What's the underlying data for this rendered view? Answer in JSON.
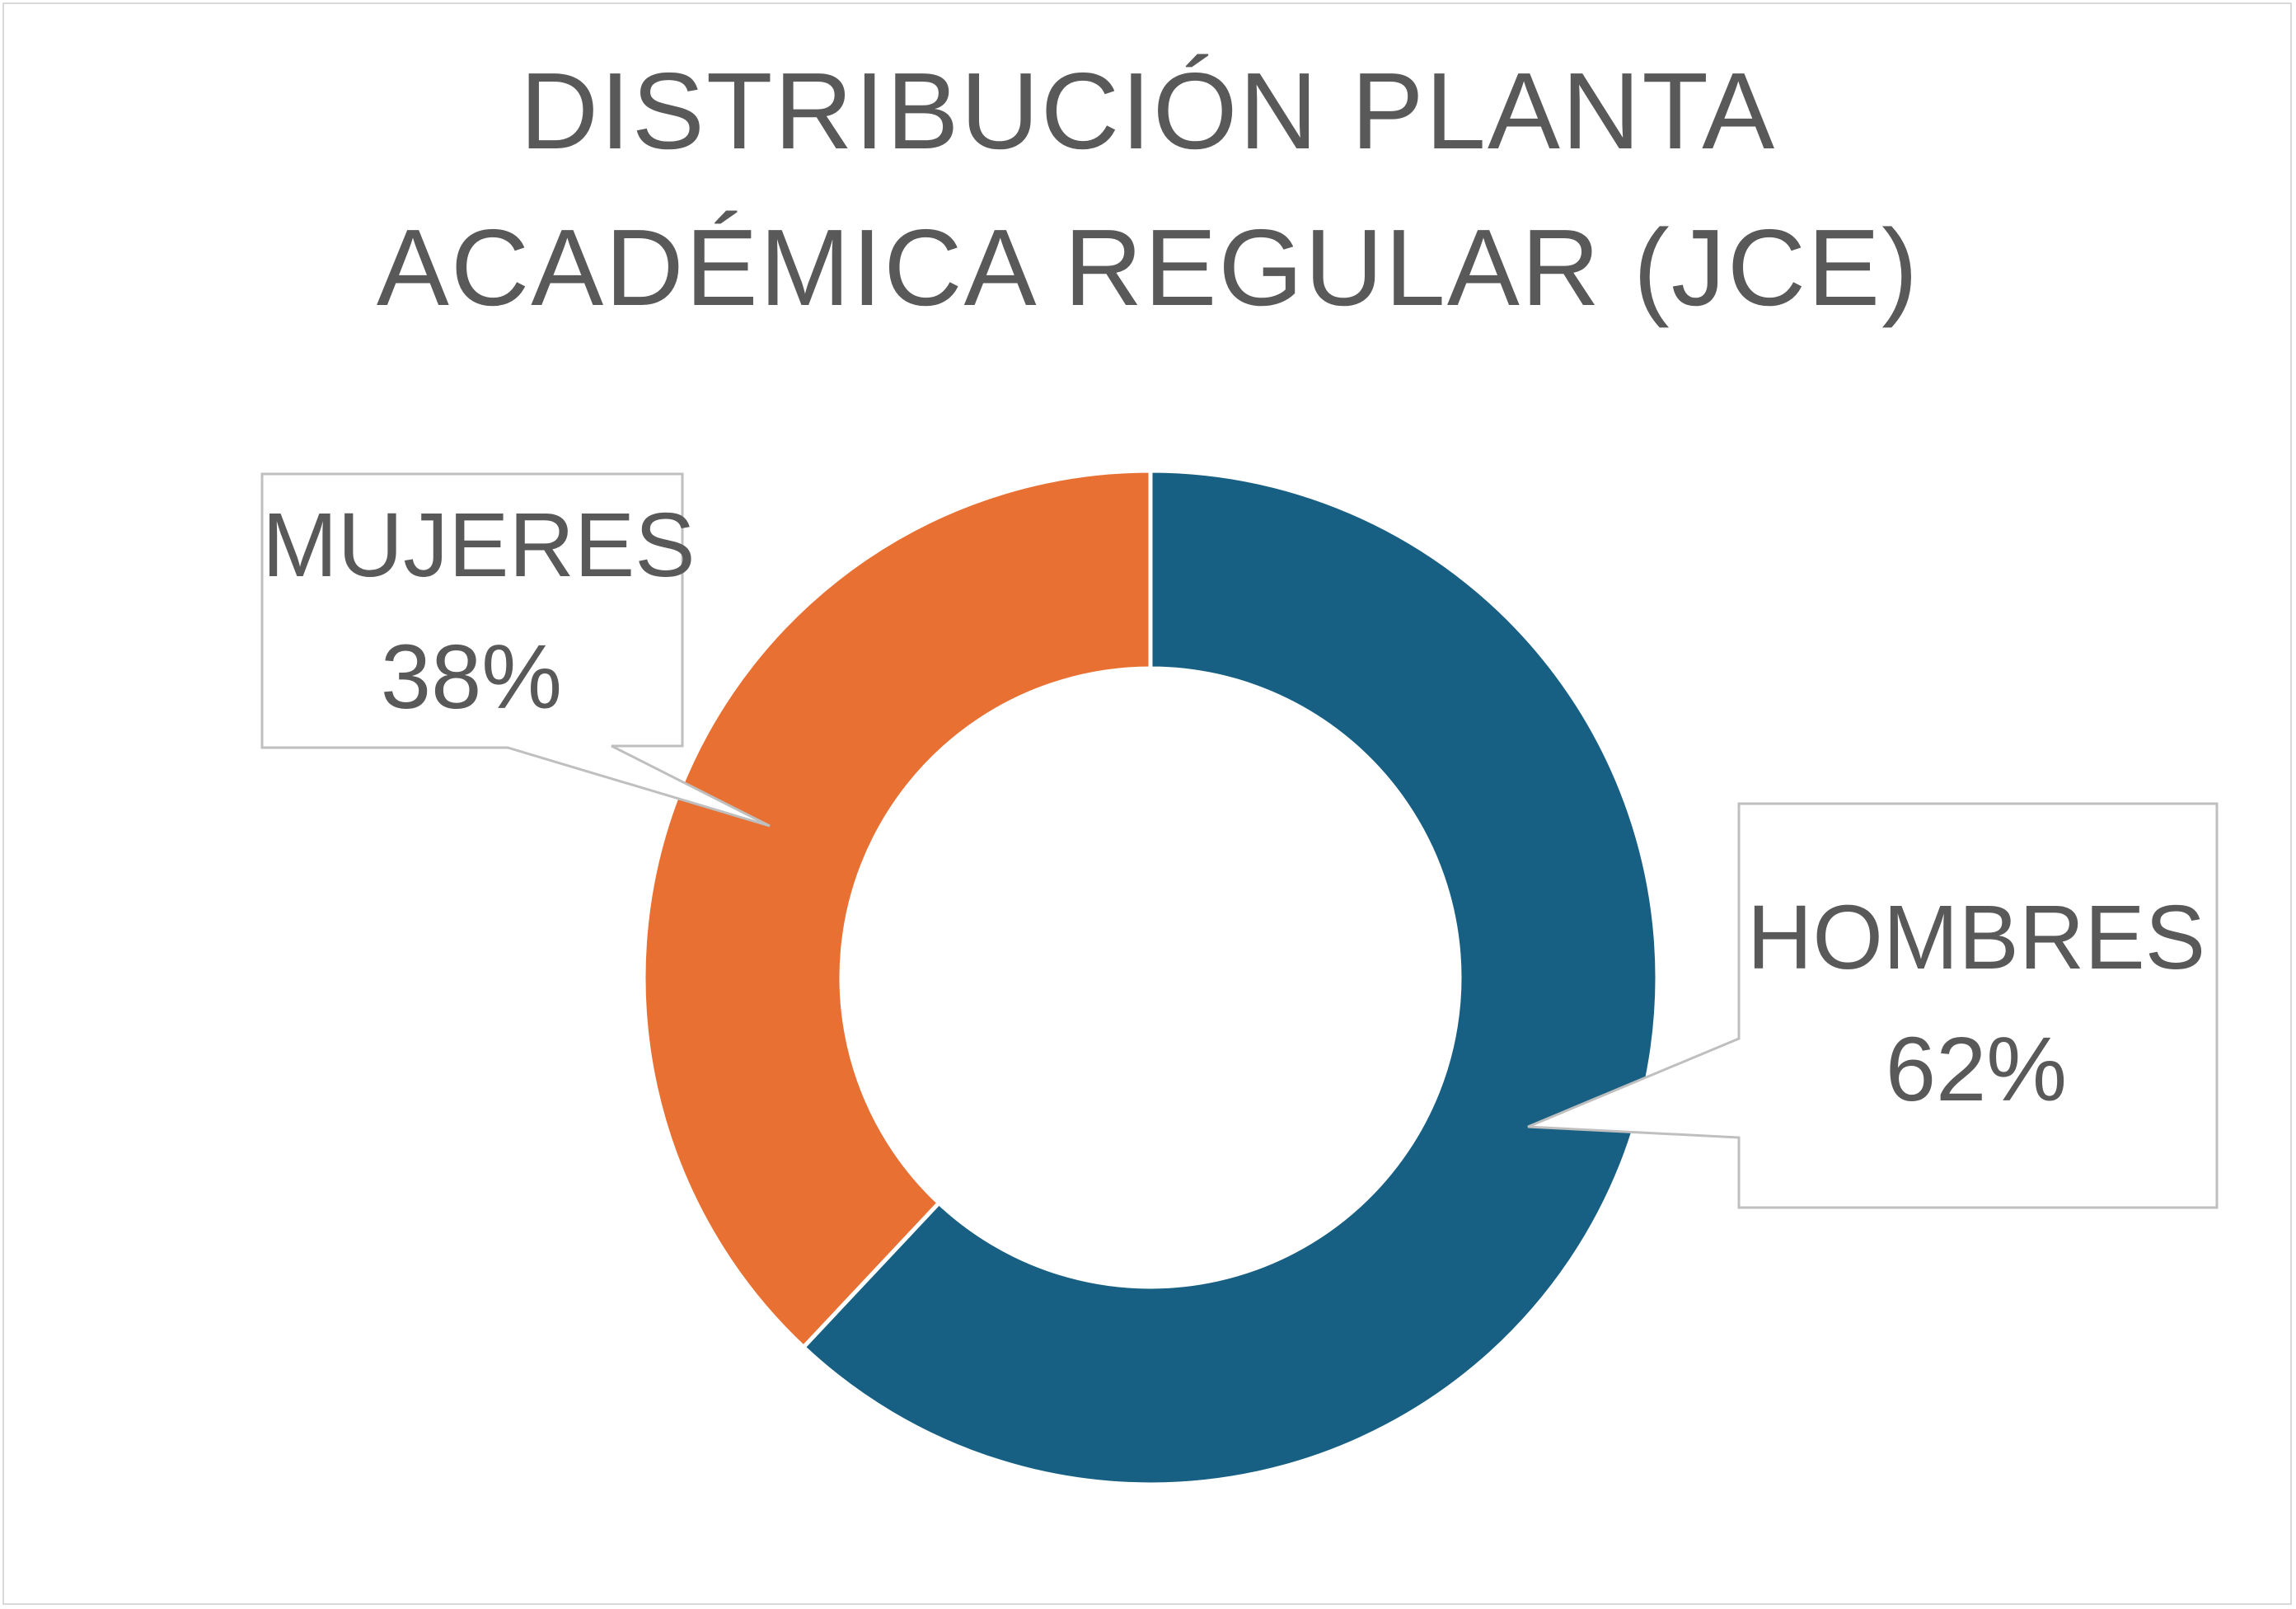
{
  "chart_data": {
    "type": "pie",
    "variant": "donut",
    "title": "DISTRIBUCIÓN PLANTA ACADÉMICA REGULAR (JCE)",
    "title_lines": [
      "DISTRIBUCIÓN PLANTA",
      "ACADÉMICA REGULAR (JCE)"
    ],
    "series": [
      {
        "name": "",
        "categories": [
          "HOMBRES",
          "MUJERES"
        ],
        "values": [
          62,
          38
        ]
      }
    ],
    "data_labels": [
      {
        "category": "HOMBRES",
        "value_text": "62%"
      },
      {
        "category": "MUJERES",
        "value_text": "38%"
      }
    ],
    "colors": {
      "HOMBRES": "#186083",
      "MUJERES": "#e87033"
    },
    "legend": "none",
    "start": "top, clockwise"
  }
}
